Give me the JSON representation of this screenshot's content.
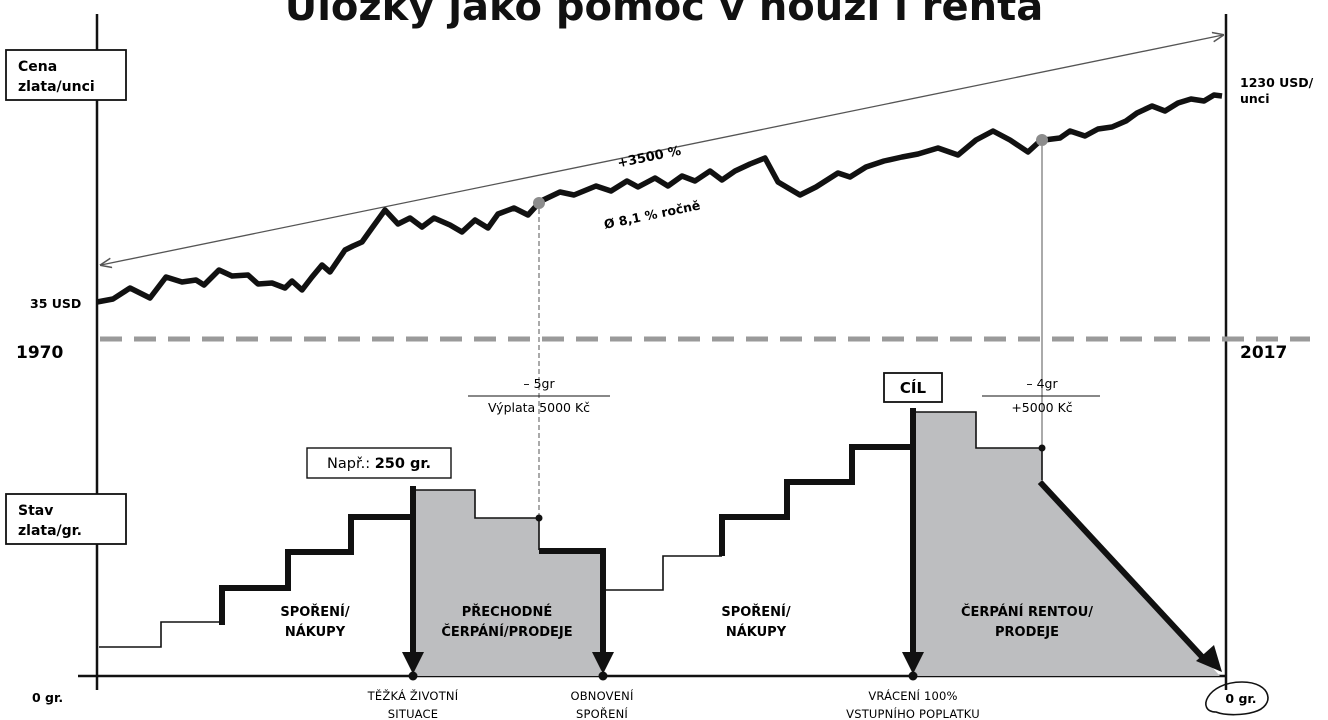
{
  "title": "Úložky jako pomoc v nouzi i renta",
  "price_axis": {
    "label_line1": "Cena",
    "label_line2": "zlata/unci",
    "start_value": "35 USD",
    "end_value_line1": "1230 USD/",
    "end_value_line2": "unci",
    "start_year": "1970",
    "end_year": "2017",
    "growth_total": "+3500 %",
    "growth_annual": "Ø 8,1 % ročně"
  },
  "stock_axis": {
    "label_line1": "Stav",
    "label_line2": "zlata/gr.",
    "start_value": "0 gr.",
    "end_value": "0 gr."
  },
  "callouts": {
    "example": {
      "prefix": "Např.: ",
      "amount": "250 gr."
    },
    "goal": "CÍL",
    "withdraw1": {
      "top": "– 5gr",
      "bottom": "Výplata 5000 Kč"
    },
    "withdraw2": {
      "top": "– 4gr",
      "bottom": "+5000 Kč"
    }
  },
  "phases": [
    {
      "line1": "SPOŘENÍ/",
      "line2": "NÁKUPY"
    },
    {
      "line1": "PŘECHODNÉ",
      "line2": "ČERPÁNÍ/PRODEJE"
    },
    {
      "line1": "SPOŘENÍ/",
      "line2": "NÁKUPY"
    },
    {
      "line1": "ČERPÁNÍ RENTOU/",
      "line2": "PRODEJE"
    }
  ],
  "events": [
    {
      "line1": "TĚŽKÁ ŽIVOTNÍ",
      "line2": "SITUACE"
    },
    {
      "line1": "OBNOVENÍ",
      "line2": "SPOŘENÍ"
    },
    {
      "line1": "VRÁCENÍ 100%",
      "line2": "VSTUPNÍHO POPLATKU"
    }
  ],
  "colors": {
    "ink": "#111111",
    "fill_grey": "#bdbec0",
    "dash_grey": "#9a9a9a",
    "dot_grey": "#8c8c8c"
  }
}
